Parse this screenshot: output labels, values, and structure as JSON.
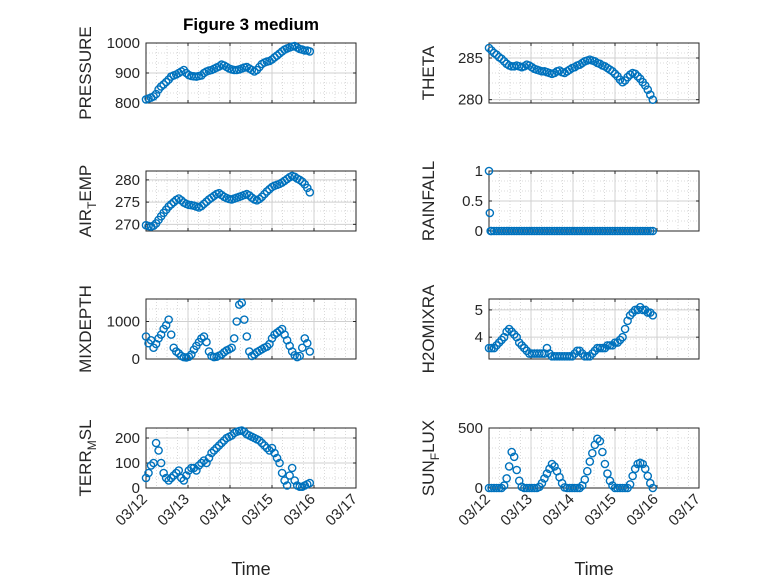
{
  "figure_title": "Figure 3 medium",
  "colors": {
    "marker": "#0072BD",
    "axis": "#262626",
    "grid": "#d0d0d0",
    "background": "#ffffff"
  },
  "chart_data": [
    {
      "type": "scatter",
      "ylabel": "PRESSURE",
      "title": "Figure 3 medium",
      "ylim": [
        800,
        1000
      ],
      "yticks": [
        800,
        900,
        1000
      ],
      "grid": true,
      "x": [
        0.0,
        0.06,
        0.12,
        0.18,
        0.24,
        0.3,
        0.36,
        0.42,
        0.48,
        0.54,
        0.6,
        0.66,
        0.72,
        0.78,
        0.84,
        0.9,
        0.96,
        1.02,
        1.08,
        1.14,
        1.2,
        1.26,
        1.32,
        1.38,
        1.44,
        1.5,
        1.56,
        1.62,
        1.68,
        1.74,
        1.8,
        1.86,
        1.92,
        1.98,
        2.04,
        2.1,
        2.16,
        2.22,
        2.28,
        2.34,
        2.4,
        2.46,
        2.52,
        2.58,
        2.64,
        2.7,
        2.76,
        2.82,
        2.88,
        2.94,
        3.0,
        3.06,
        3.12,
        3.18,
        3.24,
        3.3,
        3.36,
        3.42,
        3.48,
        3.54,
        3.6,
        3.66,
        3.72,
        3.78,
        3.84,
        3.9
      ],
      "y": [
        812,
        815,
        818,
        822,
        830,
        845,
        855,
        862,
        870,
        878,
        888,
        892,
        895,
        900,
        905,
        910,
        900,
        893,
        890,
        889,
        888,
        890,
        892,
        900,
        905,
        908,
        910,
        914,
        918,
        922,
        928,
        925,
        920,
        915,
        912,
        910,
        910,
        912,
        915,
        918,
        920,
        915,
        910,
        905,
        910,
        920,
        930,
        935,
        938,
        940,
        945,
        952,
        958,
        965,
        972,
        978,
        982,
        985,
        988,
        990,
        985,
        980,
        978,
        975,
        975,
        972
      ]
    },
    {
      "type": "scatter",
      "ylabel": "THETA",
      "ylim": [
        279.6,
        286.8
      ],
      "yticks": [
        280,
        285
      ],
      "grid": true,
      "x": [
        0.0,
        0.06,
        0.12,
        0.18,
        0.24,
        0.3,
        0.36,
        0.42,
        0.48,
        0.54,
        0.6,
        0.66,
        0.72,
        0.78,
        0.84,
        0.9,
        0.96,
        1.02,
        1.08,
        1.14,
        1.2,
        1.26,
        1.32,
        1.38,
        1.44,
        1.5,
        1.56,
        1.62,
        1.68,
        1.74,
        1.8,
        1.86,
        1.92,
        1.98,
        2.04,
        2.1,
        2.16,
        2.22,
        2.28,
        2.34,
        2.4,
        2.46,
        2.52,
        2.58,
        2.64,
        2.7,
        2.76,
        2.82,
        2.88,
        2.94,
        3.0,
        3.06,
        3.12,
        3.18,
        3.24,
        3.3,
        3.36,
        3.42,
        3.48,
        3.54,
        3.6,
        3.66,
        3.72,
        3.78,
        3.84,
        3.9
      ],
      "y": [
        286.2,
        285.9,
        285.6,
        285.4,
        285.1,
        284.9,
        284.6,
        284.3,
        284.1,
        284.0,
        284.0,
        284.1,
        284.0,
        283.9,
        284.0,
        284.2,
        284.1,
        283.9,
        283.7,
        283.6,
        283.5,
        283.4,
        283.4,
        283.3,
        283.2,
        283.1,
        283.2,
        283.4,
        283.5,
        283.3,
        283.2,
        283.4,
        283.6,
        283.8,
        283.9,
        284.1,
        284.2,
        284.4,
        284.6,
        284.7,
        284.8,
        284.7,
        284.6,
        284.4,
        284.3,
        284.1,
        284.0,
        283.8,
        283.6,
        283.4,
        283.1,
        282.8,
        282.4,
        282.1,
        282.3,
        282.7,
        283.0,
        283.2,
        283.1,
        282.8,
        282.5,
        282.1,
        281.7,
        281.2,
        280.6,
        280.0
      ]
    },
    {
      "type": "scatter",
      "ylabel": "AIR_TEMP",
      "ylim": [
        268.5,
        282
      ],
      "yticks": [
        270,
        275,
        280
      ],
      "grid": true,
      "x": [
        0.0,
        0.06,
        0.12,
        0.18,
        0.24,
        0.3,
        0.36,
        0.42,
        0.48,
        0.54,
        0.6,
        0.66,
        0.72,
        0.78,
        0.84,
        0.9,
        0.96,
        1.02,
        1.08,
        1.14,
        1.2,
        1.26,
        1.32,
        1.38,
        1.44,
        1.5,
        1.56,
        1.62,
        1.68,
        1.74,
        1.8,
        1.86,
        1.92,
        1.98,
        2.04,
        2.1,
        2.16,
        2.22,
        2.28,
        2.34,
        2.4,
        2.46,
        2.52,
        2.58,
        2.64,
        2.7,
        2.76,
        2.82,
        2.88,
        2.94,
        3.0,
        3.06,
        3.12,
        3.18,
        3.24,
        3.3,
        3.36,
        3.42,
        3.48,
        3.54,
        3.6,
        3.66,
        3.72,
        3.78,
        3.84,
        3.9
      ],
      "y": [
        269.8,
        269.6,
        269.5,
        269.7,
        270.2,
        271.0,
        271.8,
        272.6,
        273.3,
        274.0,
        274.5,
        275.0,
        275.5,
        275.8,
        275.4,
        274.9,
        274.6,
        274.4,
        274.3,
        274.2,
        274.0,
        273.8,
        274.1,
        274.6,
        275.1,
        275.6,
        276.0,
        276.4,
        276.8,
        277.0,
        276.6,
        276.2,
        275.9,
        275.7,
        275.6,
        275.8,
        276.0,
        276.2,
        276.4,
        276.6,
        276.8,
        276.5,
        276.0,
        275.6,
        275.4,
        275.7,
        276.2,
        276.8,
        277.4,
        277.9,
        278.4,
        278.7,
        278.9,
        279.1,
        279.4,
        279.8,
        280.2,
        280.6,
        280.9,
        280.7,
        280.3,
        280.0,
        279.6,
        279.0,
        278.2,
        277.2
      ]
    },
    {
      "type": "scatter",
      "ylabel": "RAINFALL",
      "ylim": [
        0,
        1
      ],
      "yticks": [
        0,
        0.5,
        1
      ],
      "grid": true,
      "x": [
        0.0,
        0.02,
        0.04,
        0.06,
        0.12,
        0.18,
        0.24,
        0.3,
        0.36,
        0.42,
        0.48,
        0.54,
        0.6,
        0.66,
        0.72,
        0.78,
        0.84,
        0.9,
        0.96,
        1.02,
        1.08,
        1.14,
        1.2,
        1.26,
        1.32,
        1.38,
        1.44,
        1.5,
        1.56,
        1.62,
        1.68,
        1.74,
        1.8,
        1.86,
        1.92,
        1.98,
        2.04,
        2.1,
        2.16,
        2.22,
        2.28,
        2.34,
        2.4,
        2.46,
        2.52,
        2.58,
        2.64,
        2.7,
        2.76,
        2.82,
        2.88,
        2.94,
        3.0,
        3.06,
        3.12,
        3.18,
        3.24,
        3.3,
        3.36,
        3.42,
        3.48,
        3.54,
        3.6,
        3.66,
        3.72,
        3.78,
        3.84,
        3.9
      ],
      "y": [
        1.0,
        0.3,
        0,
        0,
        0,
        0,
        0,
        0,
        0,
        0,
        0,
        0,
        0,
        0,
        0,
        0,
        0,
        0,
        0,
        0,
        0,
        0,
        0,
        0,
        0,
        0,
        0,
        0,
        0,
        0,
        0,
        0,
        0,
        0,
        0,
        0,
        0,
        0,
        0,
        0,
        0,
        0,
        0,
        0,
        0,
        0,
        0,
        0,
        0,
        0,
        0,
        0,
        0,
        0,
        0,
        0,
        0,
        0,
        0,
        0,
        0,
        0,
        0,
        0,
        0,
        0,
        0,
        0
      ]
    },
    {
      "type": "scatter",
      "ylabel": "MIXDEPTH",
      "ylim": [
        0,
        1600
      ],
      "yticks": [
        0,
        1000
      ],
      "grid": true,
      "x": [
        0.0,
        0.06,
        0.12,
        0.18,
        0.24,
        0.3,
        0.36,
        0.42,
        0.48,
        0.54,
        0.6,
        0.66,
        0.72,
        0.78,
        0.84,
        0.9,
        0.96,
        1.02,
        1.08,
        1.14,
        1.2,
        1.26,
        1.32,
        1.38,
        1.44,
        1.5,
        1.56,
        1.62,
        1.68,
        1.74,
        1.8,
        1.86,
        1.92,
        1.98,
        2.04,
        2.1,
        2.16,
        2.22,
        2.28,
        2.34,
        2.4,
        2.46,
        2.52,
        2.58,
        2.64,
        2.7,
        2.76,
        2.82,
        2.88,
        2.94,
        3.0,
        3.06,
        3.12,
        3.18,
        3.24,
        3.3,
        3.36,
        3.42,
        3.48,
        3.54,
        3.6,
        3.66,
        3.72,
        3.78,
        3.84,
        3.9
      ],
      "y": [
        600,
        420,
        500,
        300,
        400,
        550,
        650,
        800,
        900,
        1050,
        650,
        300,
        200,
        150,
        80,
        50,
        40,
        60,
        120,
        250,
        350,
        450,
        550,
        600,
        450,
        200,
        80,
        50,
        60,
        90,
        120,
        180,
        230,
        260,
        300,
        550,
        1000,
        1450,
        1500,
        1050,
        600,
        200,
        80,
        120,
        180,
        220,
        260,
        300,
        330,
        400,
        550,
        650,
        700,
        750,
        800,
        650,
        500,
        350,
        200,
        100,
        50,
        80,
        300,
        550,
        420,
        200
      ]
    },
    {
      "type": "scatter",
      "ylabel": "H2OMIXRA",
      "ylim": [
        3.2,
        5.4
      ],
      "yticks": [
        4,
        5
      ],
      "grid": true,
      "x": [
        0.0,
        0.06,
        0.12,
        0.18,
        0.24,
        0.3,
        0.36,
        0.42,
        0.48,
        0.54,
        0.6,
        0.66,
        0.72,
        0.78,
        0.84,
        0.9,
        0.96,
        1.02,
        1.08,
        1.14,
        1.2,
        1.26,
        1.32,
        1.38,
        1.44,
        1.5,
        1.56,
        1.62,
        1.68,
        1.74,
        1.8,
        1.86,
        1.92,
        1.98,
        2.04,
        2.1,
        2.16,
        2.22,
        2.28,
        2.34,
        2.4,
        2.46,
        2.52,
        2.58,
        2.64,
        2.7,
        2.76,
        2.82,
        2.88,
        2.94,
        3.0,
        3.06,
        3.12,
        3.18,
        3.24,
        3.3,
        3.36,
        3.42,
        3.48,
        3.54,
        3.6,
        3.66,
        3.72,
        3.78,
        3.84,
        3.9
      ],
      "y": [
        3.6,
        3.6,
        3.6,
        3.7,
        3.8,
        3.9,
        4.0,
        4.2,
        4.3,
        4.2,
        4.1,
        4.0,
        3.8,
        3.7,
        3.6,
        3.5,
        3.4,
        3.4,
        3.4,
        3.4,
        3.4,
        3.4,
        3.4,
        3.6,
        3.4,
        3.3,
        3.3,
        3.3,
        3.3,
        3.3,
        3.3,
        3.3,
        3.3,
        3.3,
        3.4,
        3.5,
        3.5,
        3.4,
        3.3,
        3.3,
        3.3,
        3.4,
        3.5,
        3.6,
        3.6,
        3.6,
        3.6,
        3.7,
        3.7,
        3.7,
        3.8,
        3.8,
        3.9,
        4.0,
        4.3,
        4.6,
        4.8,
        4.9,
        5.0,
        5.0,
        5.1,
        5.0,
        5.0,
        4.9,
        4.9,
        4.8
      ]
    },
    {
      "type": "scatter",
      "ylabel": "TERR_MSL",
      "ylim": [
        0,
        240
      ],
      "yticks": [
        0,
        100,
        200
      ],
      "grid": true,
      "x": [
        0.0,
        0.06,
        0.12,
        0.18,
        0.24,
        0.3,
        0.36,
        0.42,
        0.48,
        0.54,
        0.6,
        0.66,
        0.72,
        0.78,
        0.84,
        0.9,
        0.96,
        1.02,
        1.08,
        1.14,
        1.2,
        1.26,
        1.32,
        1.38,
        1.44,
        1.5,
        1.56,
        1.62,
        1.68,
        1.74,
        1.8,
        1.86,
        1.92,
        1.98,
        2.04,
        2.1,
        2.16,
        2.22,
        2.28,
        2.34,
        2.4,
        2.46,
        2.52,
        2.58,
        2.64,
        2.7,
        2.76,
        2.82,
        2.88,
        2.94,
        3.0,
        3.06,
        3.12,
        3.18,
        3.24,
        3.3,
        3.36,
        3.42,
        3.48,
        3.54,
        3.6,
        3.66,
        3.72,
        3.78,
        3.84,
        3.9
      ],
      "y": [
        40,
        60,
        90,
        100,
        180,
        150,
        100,
        60,
        40,
        30,
        40,
        50,
        60,
        70,
        40,
        30,
        50,
        70,
        80,
        80,
        70,
        90,
        100,
        110,
        100,
        120,
        140,
        150,
        160,
        170,
        180,
        190,
        200,
        205,
        210,
        220,
        225,
        228,
        230,
        225,
        215,
        210,
        205,
        200,
        195,
        190,
        180,
        170,
        160,
        150,
        160,
        140,
        120,
        100,
        60,
        30,
        10,
        50,
        80,
        30,
        10,
        5,
        5,
        10,
        15,
        20
      ]
    },
    {
      "type": "scatter",
      "ylabel": "SUN_FLUX",
      "ylim": [
        0,
        500
      ],
      "yticks": [
        0,
        500
      ],
      "grid": true,
      "x": [
        0.0,
        0.06,
        0.12,
        0.18,
        0.24,
        0.3,
        0.36,
        0.42,
        0.48,
        0.54,
        0.6,
        0.66,
        0.72,
        0.78,
        0.84,
        0.9,
        0.96,
        1.02,
        1.08,
        1.14,
        1.2,
        1.26,
        1.32,
        1.38,
        1.44,
        1.5,
        1.56,
        1.62,
        1.68,
        1.74,
        1.8,
        1.86,
        1.92,
        1.98,
        2.04,
        2.1,
        2.16,
        2.22,
        2.28,
        2.34,
        2.4,
        2.46,
        2.52,
        2.58,
        2.64,
        2.7,
        2.76,
        2.82,
        2.88,
        2.94,
        3.0,
        3.06,
        3.12,
        3.18,
        3.24,
        3.3,
        3.36,
        3.42,
        3.48,
        3.54,
        3.6,
        3.66,
        3.72,
        3.78,
        3.84,
        3.9
      ],
      "y": [
        0,
        0,
        0,
        0,
        0,
        0,
        20,
        80,
        180,
        300,
        260,
        150,
        60,
        10,
        0,
        0,
        0,
        0,
        0,
        0,
        10,
        40,
        80,
        120,
        160,
        200,
        180,
        140,
        90,
        40,
        5,
        0,
        0,
        0,
        0,
        0,
        0,
        20,
        70,
        140,
        220,
        290,
        360,
        410,
        390,
        300,
        200,
        120,
        60,
        20,
        0,
        0,
        0,
        0,
        0,
        0,
        30,
        100,
        160,
        200,
        210,
        200,
        160,
        100,
        40,
        0
      ]
    }
  ],
  "xaxis": {
    "xlim": [
      0,
      5
    ],
    "tick_values": [
      0,
      1,
      2,
      3,
      4,
      5
    ],
    "tick_labels": [
      "03/12",
      "03/13",
      "03/14",
      "03/15",
      "03/16",
      "03/17"
    ],
    "xlabel": "Time"
  }
}
